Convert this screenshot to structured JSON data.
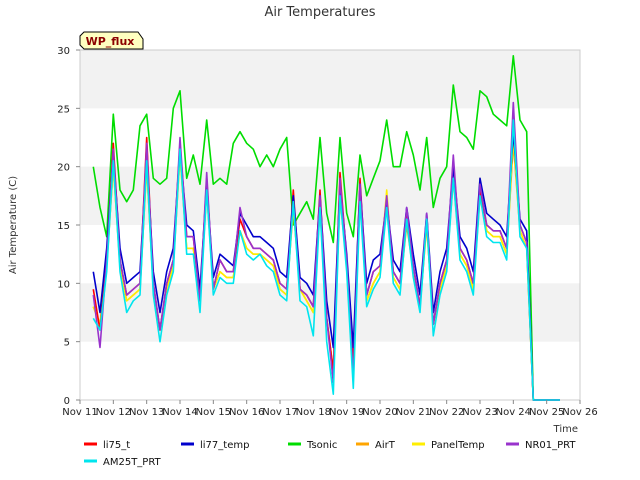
{
  "chart_data": {
    "type": "line",
    "title": "Air Temperatures",
    "xlabel": "Time",
    "ylabel": "Air Temperature (C)",
    "badge": "WP_flux",
    "xlim": [
      11,
      26
    ],
    "ylim": [
      0,
      30
    ],
    "x_ticks": [
      11,
      12,
      13,
      14,
      15,
      16,
      17,
      18,
      19,
      20,
      21,
      22,
      23,
      24,
      25,
      26
    ],
    "x_tick_labels": [
      "Nov 11",
      "Nov 12",
      "Nov 13",
      "Nov 14",
      "Nov 15",
      "Nov 16",
      "Nov 17",
      "Nov 18",
      "Nov 19",
      "Nov 20",
      "Nov 21",
      "Nov 22",
      "Nov 23",
      "Nov 24",
      "Nov 25",
      "Nov 26"
    ],
    "y_ticks": [
      0,
      5,
      10,
      15,
      20,
      25,
      30
    ],
    "y_tick_labels": [
      "0",
      "5",
      "10",
      "15",
      "20",
      "25",
      "30"
    ],
    "grid": "horizontal bands",
    "legend_position": "bottom",
    "x": [
      11.4,
      11.6,
      11.8,
      12.0,
      12.2,
      12.4,
      12.6,
      12.8,
      13.0,
      13.2,
      13.4,
      13.6,
      13.8,
      14.0,
      14.2,
      14.4,
      14.6,
      14.8,
      15.0,
      15.2,
      15.4,
      15.6,
      15.8,
      16.0,
      16.2,
      16.4,
      16.6,
      16.8,
      17.0,
      17.2,
      17.4,
      17.6,
      17.8,
      18.0,
      18.2,
      18.4,
      18.6,
      18.8,
      19.0,
      19.2,
      19.4,
      19.6,
      19.8,
      20.0,
      20.2,
      20.4,
      20.6,
      20.8,
      21.0,
      21.2,
      21.4,
      21.6,
      21.8,
      22.0,
      22.2,
      22.4,
      22.6,
      22.8,
      23.0,
      23.2,
      23.4,
      23.6,
      23.8,
      24.0,
      24.2,
      24.4,
      24.6,
      24.8,
      25.0,
      25.2,
      25.4
    ],
    "series": [
      {
        "name": "li75_t",
        "color": "#ff0000",
        "values": [
          9.5,
          6.0,
          12.0,
          22.0,
          12.0,
          9.0,
          9.5,
          10.0,
          22.5,
          10.0,
          6.0,
          10.0,
          12.0,
          22.0,
          14.0,
          14.0,
          8.5,
          19.0,
          9.5,
          12.0,
          11.0,
          11.0,
          15.5,
          14.0,
          13.0,
          13.0,
          12.5,
          12.0,
          10.0,
          9.5,
          18.0,
          9.5,
          9.0,
          8.0,
          18.0,
          7.0,
          2.5,
          19.5,
          12.0,
          3.0,
          19.0,
          9.0,
          11.0,
          11.5,
          17.0,
          11.0,
          10.0,
          16.0,
          11.5,
          8.0,
          15.5,
          6.5,
          10.0,
          12.0,
          20.5,
          13.0,
          12.0,
          10.0,
          18.0,
          15.0,
          14.5,
          14.5,
          13.0,
          23.5,
          15.0,
          13.5,
          0,
          0,
          0,
          0,
          0
        ]
      },
      {
        "name": "li77_temp",
        "color": "#0000cc",
        "values": [
          11.0,
          7.5,
          13.0,
          21.0,
          13.0,
          10.0,
          10.5,
          11.0,
          21.0,
          11.0,
          7.5,
          11.0,
          13.0,
          21.5,
          15.0,
          14.5,
          9.5,
          18.5,
          10.5,
          12.5,
          12.0,
          11.5,
          16.0,
          15.0,
          14.0,
          14.0,
          13.5,
          13.0,
          11.0,
          10.5,
          17.5,
          10.5,
          10.0,
          9.0,
          17.5,
          8.5,
          4.5,
          18.5,
          12.5,
          4.5,
          18.5,
          10.0,
          12.0,
          12.5,
          17.0,
          12.0,
          11.0,
          16.5,
          12.5,
          9.0,
          16.0,
          7.5,
          11.0,
          13.0,
          20.0,
          14.0,
          13.0,
          11.0,
          19.0,
          16.0,
          15.5,
          15.0,
          14.0,
          23.0,
          15.5,
          14.5,
          0,
          0,
          0,
          0,
          0
        ]
      },
      {
        "name": "Tsonic",
        "color": "#00dd00",
        "values": [
          20.0,
          16.5,
          14.0,
          24.5,
          18.0,
          17.0,
          18.0,
          23.5,
          24.5,
          19.0,
          18.5,
          19.0,
          25.0,
          26.5,
          19.0,
          21.0,
          18.5,
          24.0,
          18.5,
          19.0,
          18.5,
          22.0,
          23.0,
          22.0,
          21.5,
          20.0,
          21.0,
          20.0,
          21.5,
          22.5,
          15.0,
          16.0,
          17.0,
          15.5,
          22.5,
          16.0,
          13.5,
          22.5,
          16.0,
          14.0,
          21.0,
          17.5,
          19.0,
          20.5,
          24.0,
          20.0,
          20.0,
          23.0,
          21.0,
          18.0,
          22.5,
          16.5,
          19.0,
          20.0,
          27.0,
          23.0,
          22.5,
          21.5,
          26.5,
          26.0,
          24.5,
          24.0,
          23.5,
          29.5,
          24.0,
          23.0,
          0,
          0,
          0,
          0,
          0
        ]
      },
      {
        "name": "AirT",
        "color": "#ffa500",
        "values": [
          8.0,
          6.5,
          11.5,
          20.0,
          11.5,
          8.5,
          9.0,
          9.5,
          20.0,
          9.5,
          6.0,
          9.5,
          11.5,
          21.0,
          13.0,
          13.0,
          8.5,
          18.0,
          9.5,
          11.0,
          10.5,
          10.5,
          14.5,
          13.0,
          12.5,
          12.5,
          12.0,
          11.5,
          9.5,
          9.0,
          16.5,
          9.5,
          8.5,
          7.5,
          16.5,
          7.0,
          2.5,
          17.5,
          11.5,
          3.0,
          17.5,
          8.5,
          10.0,
          11.0,
          17.0,
          10.5,
          9.5,
          15.0,
          11.0,
          8.0,
          15.0,
          6.5,
          9.5,
          11.5,
          19.0,
          12.5,
          11.5,
          9.5,
          17.5,
          14.5,
          14.0,
          14.0,
          12.5,
          22.0,
          14.5,
          13.0,
          0,
          0,
          0,
          0,
          0
        ]
      },
      {
        "name": "PanelTemp",
        "color": "#ffee00",
        "values": [
          8.0,
          6.5,
          11.5,
          20.0,
          11.5,
          8.5,
          9.0,
          9.5,
          20.0,
          9.5,
          6.0,
          9.5,
          11.5,
          21.0,
          13.0,
          13.0,
          8.5,
          18.0,
          9.5,
          11.0,
          10.5,
          10.5,
          14.5,
          13.0,
          12.5,
          12.5,
          12.0,
          11.5,
          9.5,
          9.0,
          16.5,
          9.5,
          8.5,
          7.5,
          16.5,
          7.0,
          2.5,
          17.5,
          11.5,
          3.0,
          17.5,
          8.5,
          10.0,
          11.0,
          18.0,
          10.5,
          9.5,
          15.5,
          11.0,
          8.0,
          15.0,
          6.5,
          9.5,
          11.5,
          19.0,
          12.5,
          11.5,
          9.5,
          19.0,
          14.5,
          14.0,
          14.0,
          12.5,
          22.5,
          14.5,
          13.0,
          0,
          0,
          0,
          0,
          0
        ]
      },
      {
        "name": "NR01_PRT",
        "color": "#9933cc",
        "values": [
          9.0,
          4.5,
          12.0,
          21.5,
          12.0,
          9.0,
          9.5,
          10.0,
          22.0,
          10.0,
          6.0,
          10.0,
          12.0,
          22.5,
          14.0,
          14.0,
          8.5,
          19.5,
          9.5,
          12.0,
          11.0,
          11.0,
          16.5,
          14.0,
          13.0,
          13.0,
          12.5,
          12.0,
          10.0,
          9.5,
          17.0,
          9.5,
          9.0,
          8.0,
          17.5,
          7.0,
          1.5,
          19.0,
          12.0,
          2.0,
          18.5,
          9.0,
          11.0,
          11.5,
          17.5,
          11.0,
          10.0,
          16.5,
          11.5,
          8.0,
          16.0,
          6.5,
          10.0,
          12.0,
          21.0,
          13.0,
          12.0,
          10.0,
          18.5,
          15.0,
          14.5,
          14.5,
          13.0,
          25.5,
          15.0,
          13.5,
          0,
          0,
          0,
          0,
          0
        ]
      },
      {
        "name": "AM25T_PRT",
        "color": "#00e5ee",
        "values": [
          7.0,
          6.0,
          11.0,
          20.5,
          11.0,
          7.5,
          8.5,
          9.0,
          20.5,
          9.0,
          5.0,
          9.0,
          11.0,
          21.5,
          12.5,
          12.5,
          7.5,
          18.0,
          9.0,
          10.5,
          10.0,
          10.0,
          14.5,
          12.5,
          12.0,
          12.5,
          11.5,
          11.0,
          9.0,
          8.5,
          17.0,
          8.5,
          8.0,
          5.5,
          16.5,
          5.0,
          0.5,
          17.5,
          11.0,
          1.0,
          17.0,
          8.0,
          9.5,
          10.5,
          16.5,
          10.0,
          9.0,
          15.5,
          10.5,
          7.5,
          15.5,
          5.5,
          9.0,
          11.0,
          19.0,
          12.0,
          11.0,
          9.0,
          17.5,
          14.0,
          13.5,
          13.5,
          12.0,
          24.0,
          14.0,
          13.0,
          0,
          0,
          0,
          0,
          0
        ]
      }
    ]
  }
}
